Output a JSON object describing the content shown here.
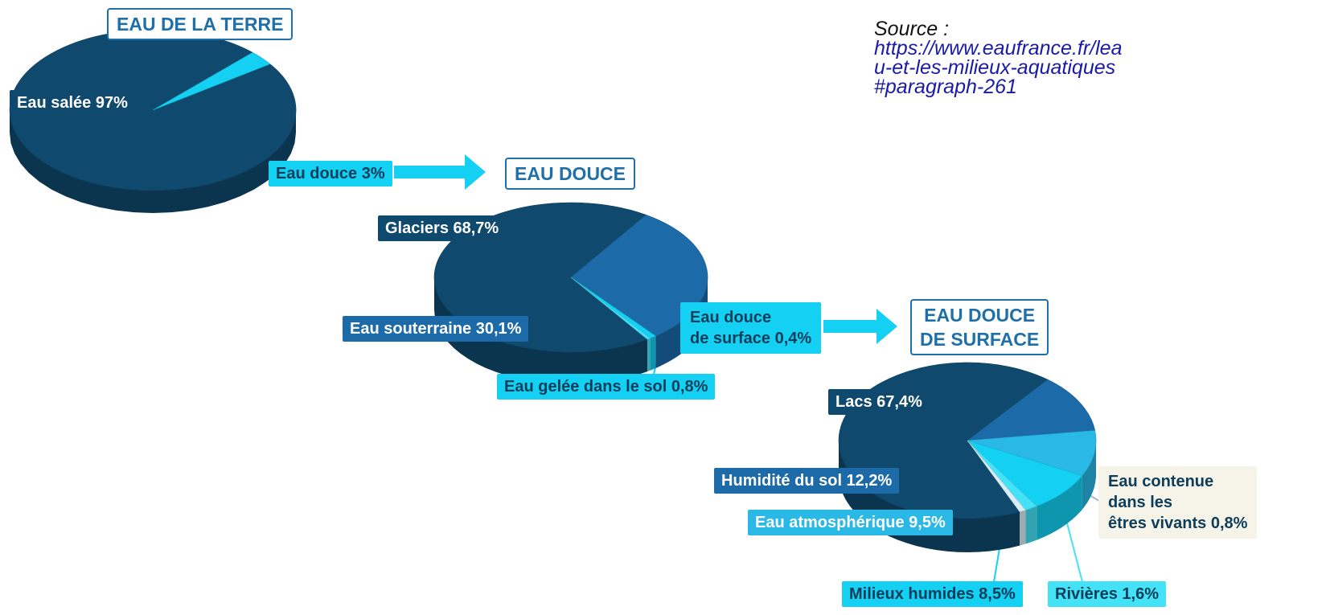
{
  "colors": {
    "dark": "#0f4a6e",
    "mid": "#1c6aa8",
    "light": "#2ab8e6",
    "cyan": "#14d0f2",
    "aqua": "#44e2f6",
    "white_slice": "#d9eef5",
    "title_blue": "#1f6fa8"
  },
  "source": {
    "label": "Source :",
    "url": "https://www.eaufrance.fr/leau-et-les-milieux-aquatiques#paragraph-261"
  },
  "chart_data": [
    {
      "type": "pie",
      "title": "EAU DE LA TERRE",
      "categories": [
        "Eau salée",
        "Eau douce"
      ],
      "values": [
        97,
        3
      ],
      "labels": [
        "Eau salée 97%",
        "Eau douce 3%"
      ]
    },
    {
      "type": "pie",
      "title": "EAU DOUCE",
      "categories": [
        "Glaciers",
        "Eau souterraine",
        "Eau gelée dans le sol",
        "Eau douce de surface"
      ],
      "values": [
        68.7,
        30.1,
        0.8,
        0.4
      ],
      "labels": [
        "Glaciers 68,7%",
        "Eau souterraine 30,1%",
        "Eau gelée dans le sol 0,8%",
        "Eau douce\nde surface 0,4%"
      ]
    },
    {
      "type": "pie",
      "title": "EAU DOUCE\nDE SURFACE",
      "categories": [
        "Lacs",
        "Humidité du sol",
        "Eau atmosphérique",
        "Milieux humides",
        "Rivières",
        "Eau contenue dans les êtres vivants"
      ],
      "values": [
        67.4,
        12.2,
        9.5,
        8.5,
        1.6,
        0.8
      ],
      "labels": [
        "Lacs 67,4%",
        "Humidité du sol 12,2%",
        "Eau atmosphérique 9,5%",
        "Milieux humides 8,5%",
        "Rivières 1,6%",
        "Eau contenue\ndans les\nêtres vivants 0,8%"
      ]
    }
  ]
}
